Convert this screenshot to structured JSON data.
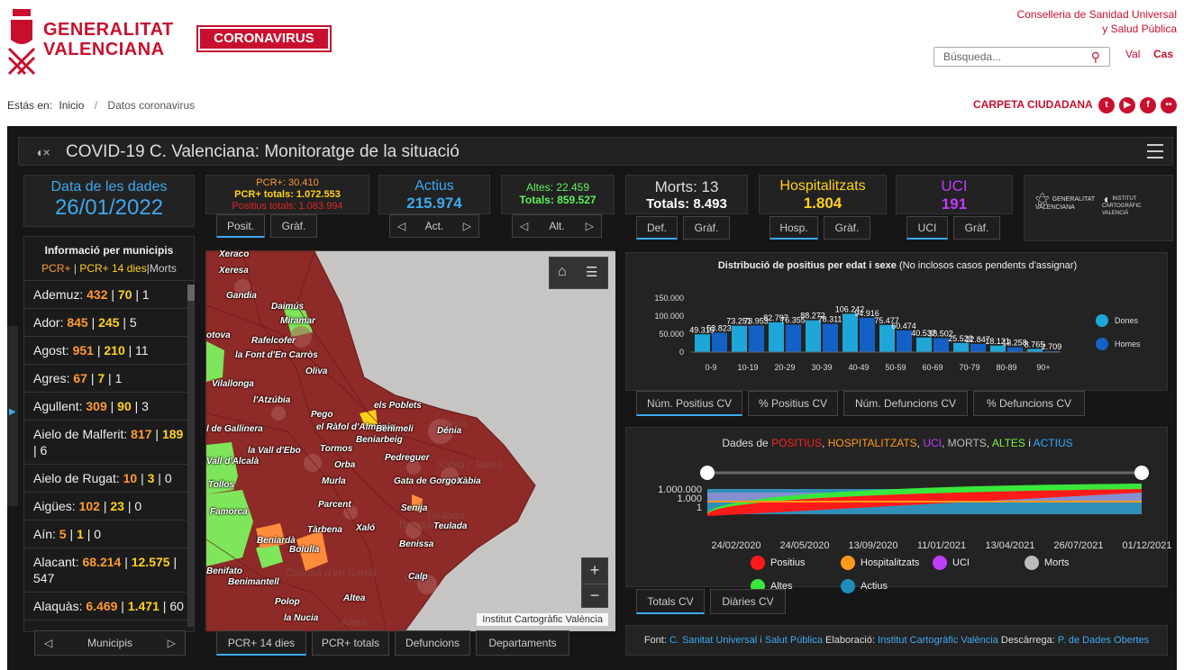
{
  "header": {
    "logo_line1": "GENERALITAT",
    "logo_line2": "VALENCIANA",
    "coronavirus_button": "CORONAVIRUS",
    "conselleria_line1": "Conselleria de Sanidad Universal",
    "conselleria_line2": "y Salud Pública",
    "search_placeholder": "Búsqueda...",
    "lang_val": "Val",
    "lang_cas": "Cas",
    "breadcrumb_prefix": "Estás en:",
    "breadcrumb_home": "Inicio",
    "breadcrumb_sep": "/",
    "breadcrumb_current": "Datos coronavirus",
    "carpeta": "CARPETA CIUDADANA"
  },
  "dashboard": {
    "title": "COVID-19 C. Valenciana: Monitoratge de la situació",
    "date_label": "Data de les dades",
    "date_value": "26/01/2022",
    "pcr": {
      "line1": "PCR+: 30.410",
      "line2": "PCR+ totals: 1.072.553",
      "line3": "Positius totals: 1.083.994",
      "tab1": "Posit.",
      "tab2": "Gràf."
    },
    "actius": {
      "label": "Actius",
      "value": "215.974",
      "nav": "Act."
    },
    "altes": {
      "line1": "Altes: 22.459",
      "line2": "Totals: 859.527",
      "nav": "Alt."
    },
    "morts": {
      "line1": "Morts: 13",
      "line2": "Totals: 8.493",
      "tab1": "Def.",
      "tab2": "Gràf."
    },
    "hosp": {
      "label": "Hospitalitzats",
      "value": "1.804",
      "tab1": "Hosp.",
      "tab2": "Gràf."
    },
    "uci": {
      "label": "UCI",
      "value": "191",
      "tab1": "UCI",
      "tab2": "Gràf."
    },
    "brand_gv": "GENERALITAT VALENCIANA",
    "brand_icv": "INSTITUT CARTOGRÀFIC VALENCIÀ"
  },
  "municipis": {
    "title": "Informació per municipis",
    "legend_pcr": "PCR+",
    "legend_pcr14": "PCR+ 14 dies",
    "legend_morts": "Morts",
    "sep": "|",
    "nav_label": "Municipis",
    "items": [
      {
        "name": "Ademuz:",
        "a": "432",
        "b": "70",
        "c": "1"
      },
      {
        "name": "Ador:",
        "a": "845",
        "b": "245",
        "c": "5"
      },
      {
        "name": "Agost:",
        "a": "951",
        "b": "210",
        "c": "11"
      },
      {
        "name": "Agres:",
        "a": "67",
        "b": "7",
        "c": "1"
      },
      {
        "name": "Agullent:",
        "a": "309",
        "b": "90",
        "c": "3"
      },
      {
        "name": "Aielo de Malferit:",
        "a": "817",
        "b": "189",
        "c": "6"
      },
      {
        "name": "Aielo de Rugat:",
        "a": "10",
        "b": "3",
        "c": "0"
      },
      {
        "name": "Aigües:",
        "a": "102",
        "b": "23",
        "c": "0"
      },
      {
        "name": "Aín:",
        "a": "5",
        "b": "1",
        "c": "0"
      },
      {
        "name": "Alacant:",
        "a": "68.214",
        "b": "12.575",
        "c": "547"
      },
      {
        "name": "Alaquàs:",
        "a": "6.469",
        "b": "1.471",
        "c": "60"
      }
    ]
  },
  "map": {
    "attribution": "Institut Cartogràfic València",
    "zoom_in": "+",
    "zoom_out": "−",
    "basemap_labels": [
      "Dénia",
      "Xàbia / Jávea",
      "Teulada",
      "Benissa",
      "Calpe",
      "Callosa d'en Sarrià",
      "Altea"
    ],
    "labels": [
      "Xeraco",
      "Xeresa",
      "Gandia",
      "Daimús",
      "Miramar",
      "Rafelcofer",
      "la Font d'En Carròs",
      "Oliva",
      "Vilallonga",
      "l'Atzúbia",
      "els Poblets",
      "Pego",
      "el Ràfol d'Almúnia",
      "Dénia",
      "Benimeli",
      "Beniarbeig",
      "la Vall d'Ebo",
      "Tormos",
      "Pedreguer",
      "Orba",
      "Gata de Gorgos",
      "Xàbia",
      "Murla",
      "Parcent",
      "Senija",
      "Teulada",
      "Tàrbena",
      "Xaló",
      "Benissa",
      "Beniardà",
      "Bolulla",
      "Calp",
      "Benifato",
      "Benimantell",
      "Polop",
      "Altea",
      "la Nucia",
      "l de Gallinera",
      "Vall d'Alcalà",
      "Tollos",
      "Famorca",
      "otova"
    ],
    "tabs": [
      "PCR+ 14 dies",
      "PCR+ totals",
      "Defuncions",
      "Departaments"
    ]
  },
  "chart_data": [
    {
      "type": "bar",
      "title": "Distribució de positius per edat i sexe",
      "subtitle": "(No inclosos casos pendents d'assignar)",
      "categories": [
        "0-9",
        "10-19",
        "20-29",
        "30-39",
        "40-49",
        "50-59",
        "60-69",
        "70-79",
        "80-89",
        "90+"
      ],
      "ylim": [
        0,
        150000
      ],
      "yticks": [
        "150.000",
        "100.000",
        "50.000",
        "0"
      ],
      "series": [
        {
          "name": "Dones",
          "color": "#1ea6d8",
          "values": [
            49315,
            73251,
            82797,
            88272,
            106242,
            75477,
            40537,
            25522,
            18121,
            8765
          ],
          "labels": [
            "49.315",
            "73.251",
            "82.797",
            "88.272",
            "106.242",
            "75.477",
            "40.537",
            "25.522",
            "18.121",
            "8.765"
          ]
        },
        {
          "name": "Homes",
          "color": "#1361c4",
          "values": [
            53823,
            73953,
            76355,
            78311,
            94916,
            60474,
            38502,
            22847,
            13258,
            2709
          ],
          "labels": [
            "53.823",
            "73.953",
            "76.355",
            "78.311",
            "94.916",
            "60.474",
            "38.502",
            "22.847",
            "13.258",
            "2.709"
          ]
        }
      ],
      "tabs": [
        "Núm. Positius CV",
        "% Positius CV",
        "Núm. Defuncions CV",
        "% Defuncions CV"
      ]
    },
    {
      "type": "area",
      "title_parts": [
        {
          "text": "Dades de ",
          "color": "#dddddd"
        },
        {
          "text": "POSITIUS",
          "color": "#ff2020"
        },
        {
          "text": ", ",
          "color": "#dddddd"
        },
        {
          "text": "HOSPITALITZATS",
          "color": "#ff9a1a"
        },
        {
          "text": ", ",
          "color": "#dddddd"
        },
        {
          "text": "UCI",
          "color": "#c03cff"
        },
        {
          "text": ", ",
          "color": "#dddddd"
        },
        {
          "text": "MORTS",
          "color": "#bbbbbb"
        },
        {
          "text": ", ",
          "color": "#dddddd"
        },
        {
          "text": "ALTES",
          "color": "#7df03a"
        },
        {
          "text": " i ",
          "color": "#dddddd"
        },
        {
          "text": "ACTIUS",
          "color": "#2ea8ff"
        }
      ],
      "yticks": [
        "1.000.000",
        "1.000",
        "1"
      ],
      "xticks": [
        "24/02/2020",
        "24/05/2020",
        "13/09/2020",
        "11/01/2021",
        "13/04/2021",
        "26/07/2021",
        "01/12/2021"
      ],
      "legend": [
        {
          "name": "Positius",
          "color": "#ff1a1a"
        },
        {
          "name": "Hospitalitzats",
          "color": "#ff9a1a"
        },
        {
          "name": "UCI",
          "color": "#c03cff"
        },
        {
          "name": "Morts",
          "color": "#bbbbbb"
        },
        {
          "name": "Altes",
          "color": "#39e83a"
        },
        {
          "name": "Actius",
          "color": "#1b8fb8"
        }
      ],
      "tabs": [
        "Totals CV",
        "Diàries CV"
      ]
    }
  ],
  "footer": {
    "font_label": "Font:",
    "font_value": "C. Sanitat Universal i Salut Pública",
    "elab_label": "Elaboració:",
    "elab_value": "Institut Cartogràfic València",
    "desc_label": "Descàrrega:",
    "desc_value": "P. de Dades Obertes"
  }
}
